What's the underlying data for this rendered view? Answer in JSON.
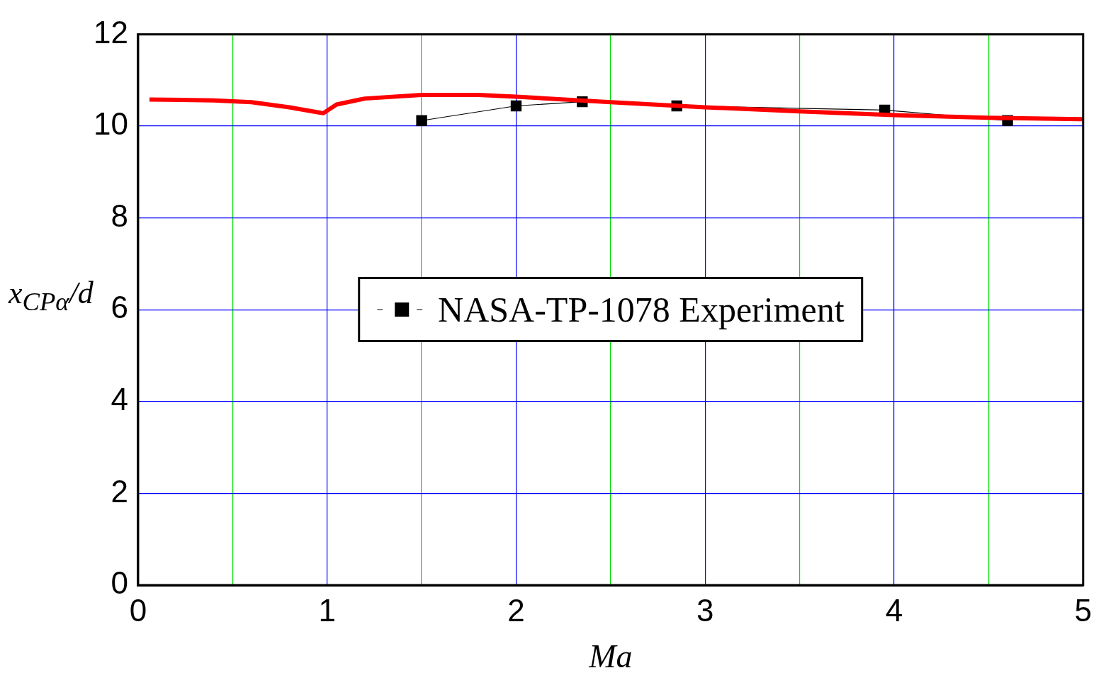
{
  "chart_data": {
    "type": "line",
    "xlabel": "Ma",
    "ylabel": "x$_{CPα}$/d",
    "xlim": [
      0,
      5
    ],
    "xticks": [
      0,
      {
        "value": 0.5,
        "label": null
      },
      1,
      {
        "value": 1.5,
        "label": null
      },
      2,
      {
        "value": 2.5,
        "label": null
      },
      3,
      {
        "value": 3.5,
        "label": null
      },
      4,
      {
        "value": 4.5,
        "label": null
      },
      5
    ],
    "ylim": [
      0,
      12
    ],
    "yticks": [
      0,
      2,
      4,
      6,
      8,
      10,
      12
    ],
    "grid": true,
    "legend": "center",
    "series": [
      {
        "color": "#ff0000",
        "marker": "none",
        "line_style": "solid",
        "x": [
          0.06,
          0.4,
          0.6,
          0.8,
          0.95,
          0.98,
          1.05,
          1.2,
          1.5,
          1.8,
          2.0,
          2.5,
          3.0,
          3.5,
          4.0,
          4.5,
          5.0
        ],
        "values": [
          10.58,
          10.56,
          10.52,
          10.41,
          10.3,
          10.28,
          10.47,
          10.6,
          10.68,
          10.68,
          10.64,
          10.52,
          10.41,
          10.32,
          10.24,
          10.18,
          10.15
        ]
      },
      {
        "name": "NASA-TP-1078 Experiment",
        "color": "#000000",
        "marker": "square",
        "line_style": "solid",
        "x": [
          1.5,
          2.0,
          2.35,
          2.85,
          3.95,
          4.6
        ],
        "values": [
          10.12,
          10.44,
          10.53,
          10.44,
          10.35,
          10.12
        ]
      }
    ]
  }
}
